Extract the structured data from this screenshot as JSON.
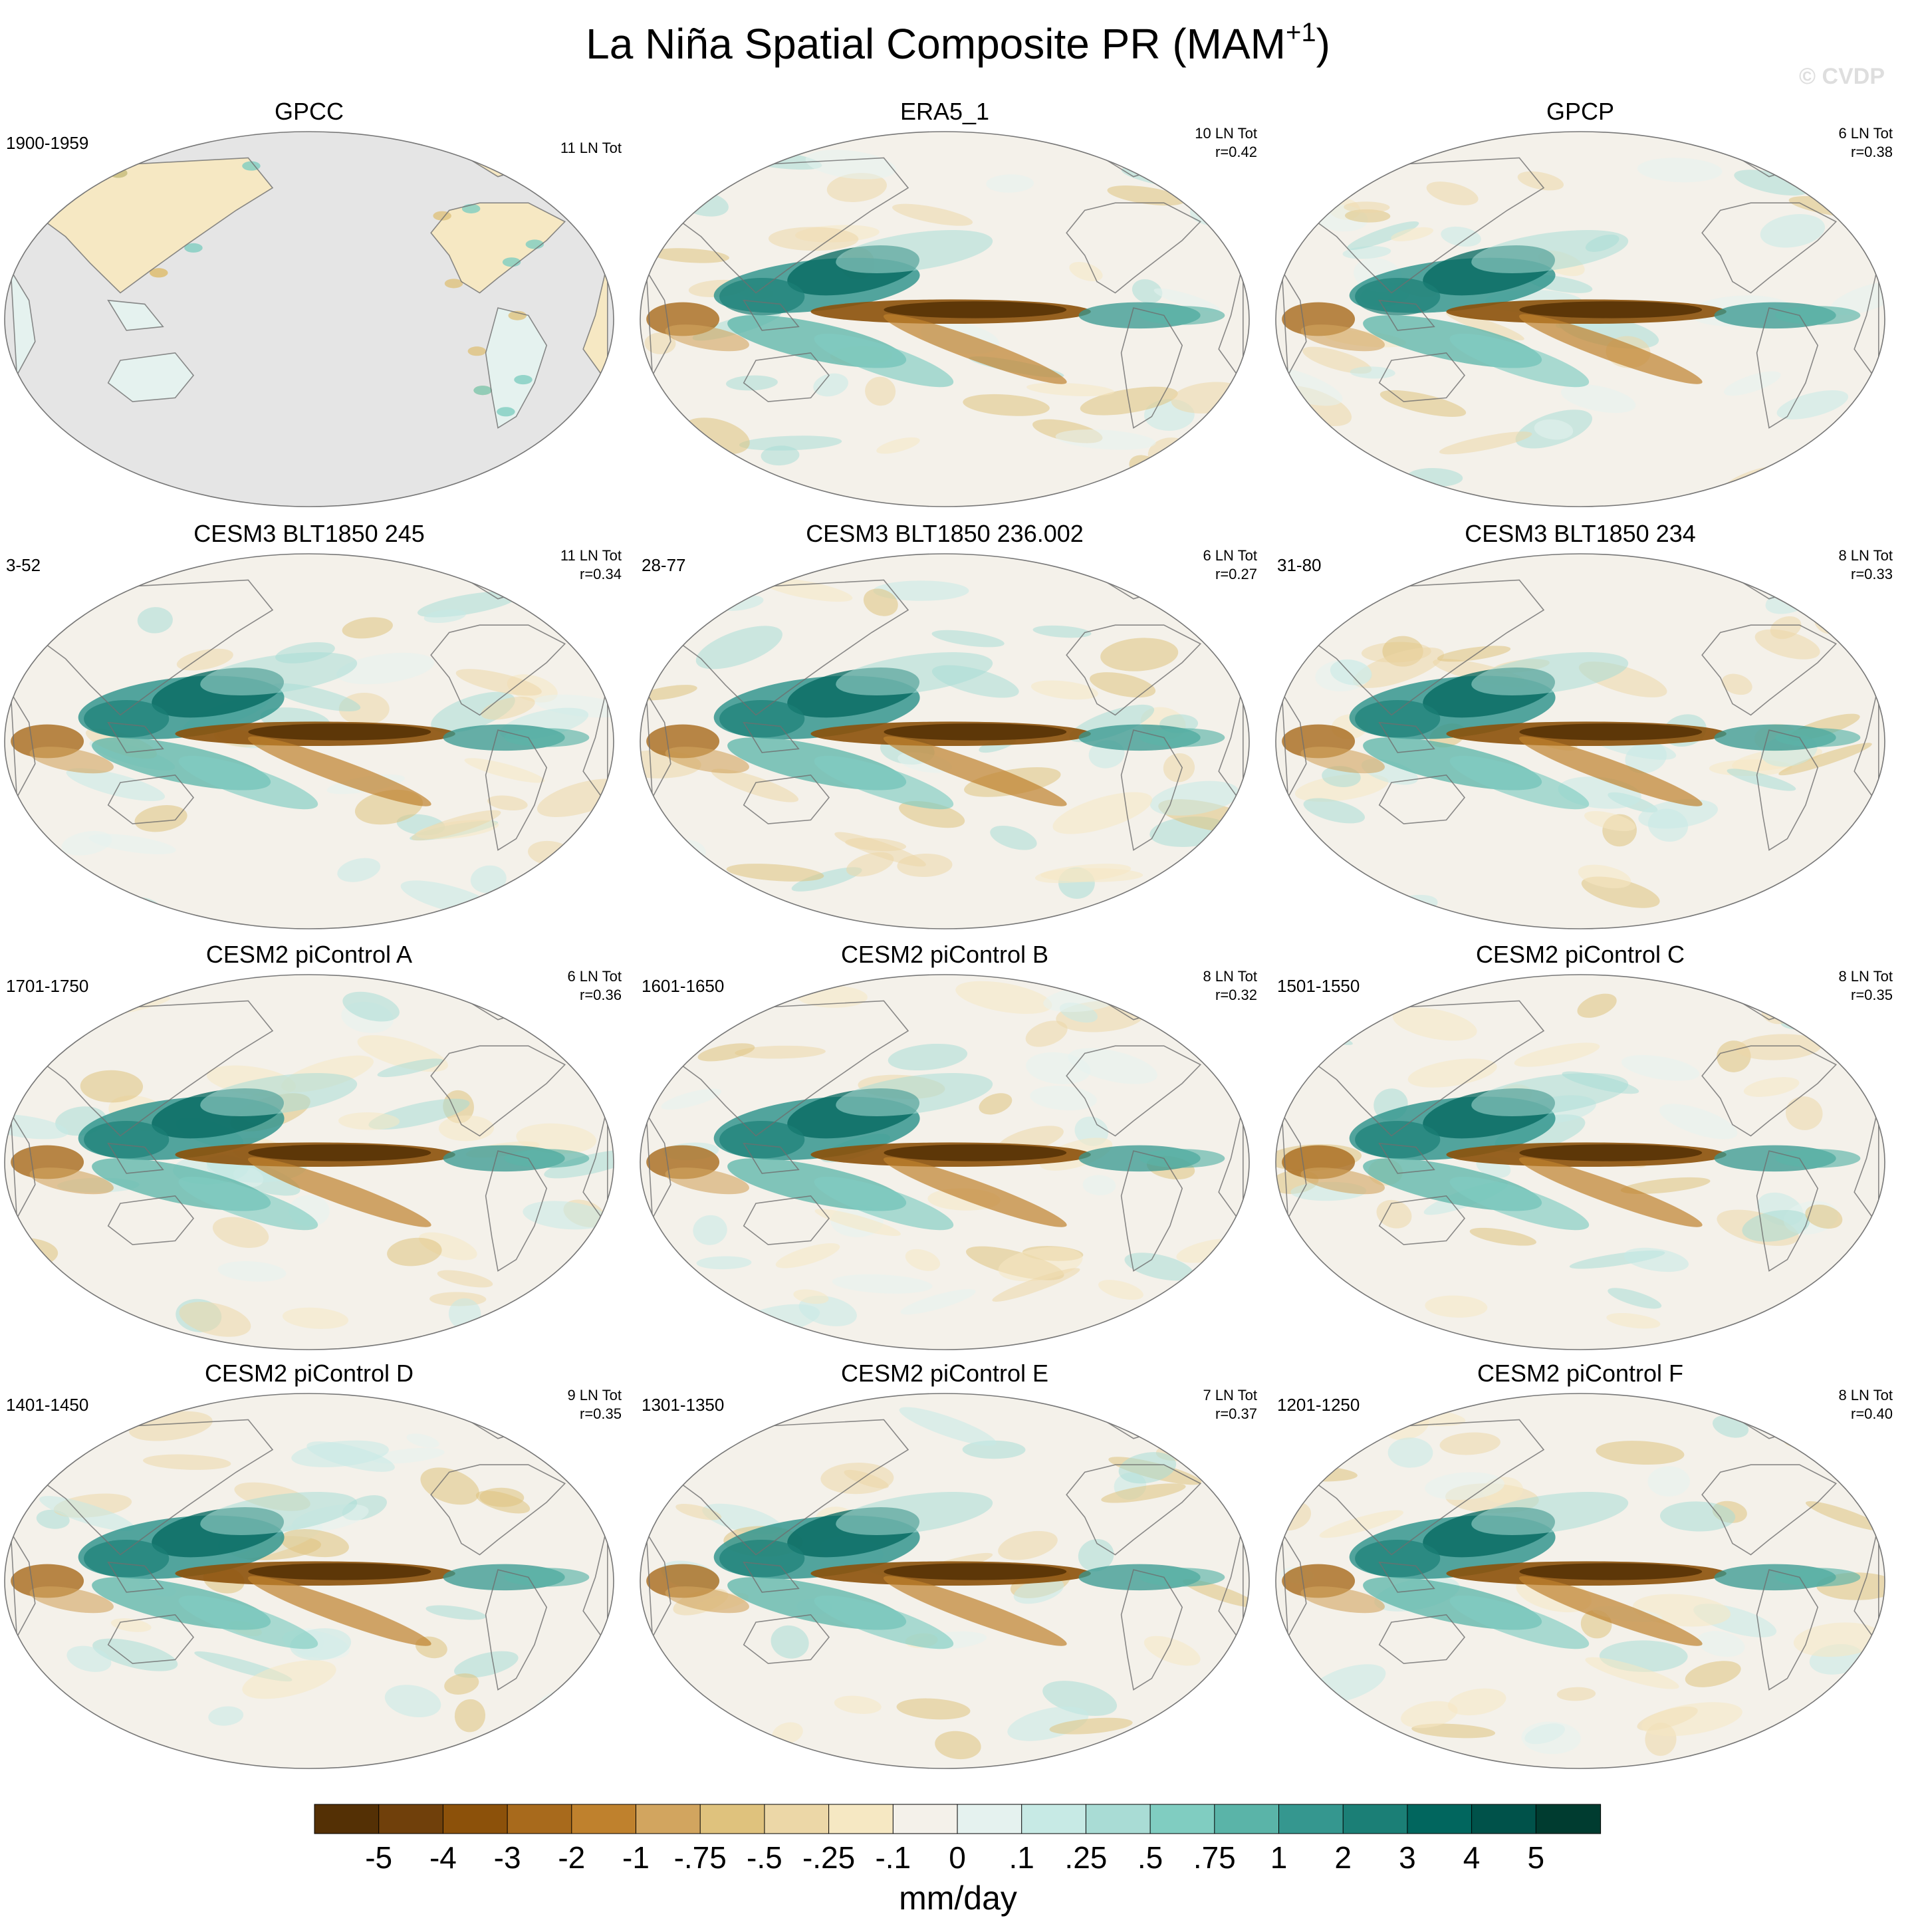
{
  "chart_data": {
    "type": "heatmap",
    "title": "La Niña Spatial Composite PR (MAM",
    "title_superscript": "+1",
    "title_close": ")",
    "watermark": "© CVDP",
    "colorbar": {
      "unit_label": "mm/day",
      "tick_labels": [
        "-5",
        "-4",
        "-3",
        "-2",
        "-1",
        "-.75",
        "-.5",
        "-.25",
        "-.1",
        "0",
        ".1",
        ".25",
        ".5",
        ".75",
        "1",
        "2",
        "3",
        "4",
        "5"
      ],
      "colors": [
        "#543005",
        "#70400b",
        "#8c510a",
        "#a86a1c",
        "#bf812d",
        "#d2a55f",
        "#dfc27d",
        "#ecd7a7",
        "#f6e8c3",
        "#f4f1ea",
        "#e5f2ef",
        "#c7eae5",
        "#a9dcd5",
        "#80cdc1",
        "#5ab4a8",
        "#35978f",
        "#1b7f76",
        "#01665e",
        "#00524a",
        "#003c30"
      ]
    },
    "panels": [
      {
        "name": "GPCC",
        "period": "1900-1959",
        "events": "11 LN Tot",
        "pattern": "none",
        "masked": true
      },
      {
        "name": "ERA5_1",
        "period": "",
        "events": "10 LN Tot",
        "corr": "r=0.42",
        "pattern": "strong"
      },
      {
        "name": "GPCP",
        "period": "",
        "events": "6 LN Tot",
        "corr": "r=0.38",
        "pattern": "strong"
      },
      {
        "name": "CESM3 BLT1850 245",
        "period": "3-52",
        "events": "11 LN Tot",
        "corr": "r=0.34",
        "pattern": "model"
      },
      {
        "name": "CESM3 BLT1850 236.002",
        "period": "28-77",
        "events": "6 LN Tot",
        "corr": "r=0.27",
        "pattern": "model"
      },
      {
        "name": "CESM3 BLT1850 234",
        "period": "31-80",
        "events": "8 LN Tot",
        "corr": "r=0.33",
        "pattern": "model"
      },
      {
        "name": "CESM2 piControl A",
        "period": "1701-1750",
        "events": "6 LN Tot",
        "corr": "r=0.36",
        "pattern": "model"
      },
      {
        "name": "CESM2 piControl B",
        "period": "1601-1650",
        "events": "8 LN Tot",
        "corr": "r=0.32",
        "pattern": "model"
      },
      {
        "name": "CESM2 piControl C",
        "period": "1501-1550",
        "events": "8 LN Tot",
        "corr": "r=0.35",
        "pattern": "model"
      },
      {
        "name": "CESM2 piControl D",
        "period": "1401-1450",
        "events": "9 LN Tot",
        "corr": "r=0.35",
        "pattern": "model"
      },
      {
        "name": "CESM2 piControl E",
        "period": "1301-1350",
        "events": "7 LN Tot",
        "corr": "r=0.37",
        "pattern": "model"
      },
      {
        "name": "CESM2 piControl F",
        "period": "1201-1250",
        "events": "8 LN Tot",
        "corr": "r=0.40",
        "pattern": "model"
      }
    ]
  }
}
